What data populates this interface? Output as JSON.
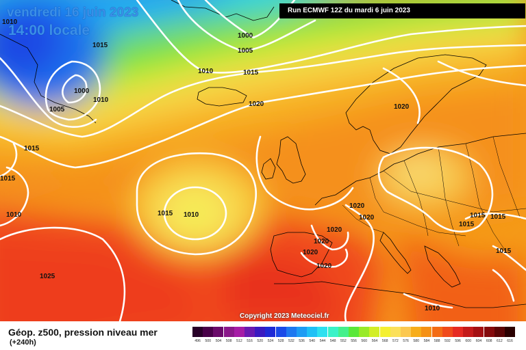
{
  "title": {
    "date": "vendredi 16 juin 2023",
    "time": "14:00 locale",
    "run": "Run ECMWF 12Z du mardi 6 juin 2023"
  },
  "copyright": "Copyright 2023 Meteociel.fr",
  "footer": {
    "product": "Géop. z500, pression niveau mer",
    "leadtime": "(+240h)"
  },
  "isobar_labels": [
    "1010",
    "1000",
    "1005",
    "1015",
    "1010",
    "1015",
    "1000",
    "1010",
    "1005",
    "1020",
    "1020",
    "1015",
    "1015",
    "1010",
    "1015",
    "1010",
    "1020",
    "1020",
    "1020",
    "1020",
    "1020",
    "1020",
    "1025",
    "1015",
    "1015",
    "1015",
    "1015",
    "1010"
  ],
  "legend": [
    {
      "value": "496",
      "color": "#280028"
    },
    {
      "value": "500",
      "color": "#480048"
    },
    {
      "value": "504",
      "color": "#6a0a6a"
    },
    {
      "value": "508",
      "color": "#8a188a"
    },
    {
      "value": "512",
      "color": "#a61ca6"
    },
    {
      "value": "516",
      "color": "#6a1ab0"
    },
    {
      "value": "520",
      "color": "#3a1ac0"
    },
    {
      "value": "524",
      "color": "#1e2ad6"
    },
    {
      "value": "528",
      "color": "#1a4ae8"
    },
    {
      "value": "532",
      "color": "#1e78f0"
    },
    {
      "value": "536",
      "color": "#1e9cf4"
    },
    {
      "value": "540",
      "color": "#20c0f6"
    },
    {
      "value": "544",
      "color": "#2ee0f0"
    },
    {
      "value": "548",
      "color": "#3af2c8"
    },
    {
      "value": "552",
      "color": "#44f08c"
    },
    {
      "value": "556",
      "color": "#5ae83a"
    },
    {
      "value": "560",
      "color": "#98ea28"
    },
    {
      "value": "564",
      "color": "#d2ee26"
    },
    {
      "value": "568",
      "color": "#f4f030"
    },
    {
      "value": "572",
      "color": "#fbe05a"
    },
    {
      "value": "576",
      "color": "#fbc850"
    },
    {
      "value": "580",
      "color": "#f7ad1a"
    },
    {
      "value": "584",
      "color": "#f59114"
    },
    {
      "value": "588",
      "color": "#f36c14"
    },
    {
      "value": "592",
      "color": "#f04a1a"
    },
    {
      "value": "596",
      "color": "#e62a22"
    },
    {
      "value": "600",
      "color": "#c41a1a"
    },
    {
      "value": "604",
      "color": "#a40f12"
    },
    {
      "value": "608",
      "color": "#840a0c"
    },
    {
      "value": "612",
      "color": "#5a0506"
    },
    {
      "value": "616",
      "color": "#2a0000"
    }
  ]
}
